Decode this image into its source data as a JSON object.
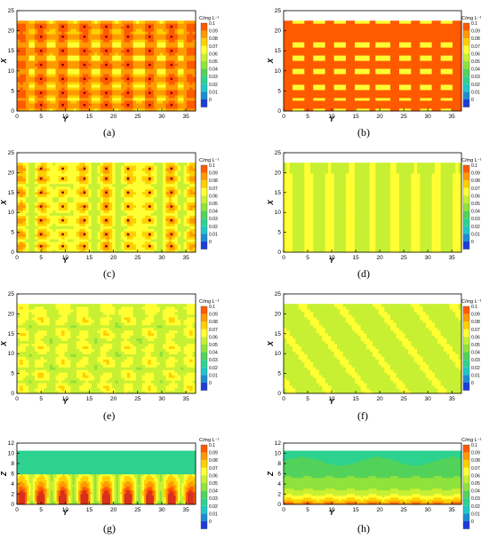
{
  "figure": {
    "panels": [
      {
        "label": "(a)",
        "pattern": "high_grid",
        "xlabel": "Y",
        "ylabel": "X"
      },
      {
        "label": "(b)",
        "pattern": "high_bands",
        "xlabel": "Y",
        "ylabel": "X"
      },
      {
        "label": "(c)",
        "pattern": "mid_spots",
        "xlabel": "Y",
        "ylabel": "X"
      },
      {
        "label": "(d)",
        "pattern": "low_bands",
        "xlabel": "Y",
        "ylabel": "X"
      },
      {
        "label": "(e)",
        "pattern": "mid_soft",
        "xlabel": "Y",
        "ylabel": "X"
      },
      {
        "label": "(f)",
        "pattern": "uniform_low",
        "xlabel": "Y",
        "ylabel": "X"
      },
      {
        "label": "(g)",
        "pattern": "vertical_hot",
        "xlabel": "Y",
        "ylabel": "Z"
      },
      {
        "label": "(h)",
        "pattern": "vertical_layers",
        "xlabel": "Y",
        "ylabel": "Z"
      }
    ]
  },
  "chart_data": {
    "type": "heatmap",
    "colorbar": {
      "title": "C/mg L⁻¹",
      "levels": [
        "0.1",
        "0.09",
        "0.08",
        "0.07",
        "0.06",
        "0.05",
        "0.04",
        "0.03",
        "0.02",
        "0.01",
        "0"
      ],
      "colors": [
        "#d7301f",
        "#ff5a00",
        "#ff9a00",
        "#ffd000",
        "#ffff33",
        "#c8f032",
        "#90e23c",
        "#52d25a",
        "#2dd28e",
        "#1ec8c8",
        "#1e8cd2",
        "#1e3cdc"
      ]
    },
    "xy_panels": {
      "x_ticks": [
        0,
        5,
        10,
        15,
        20,
        25,
        30,
        35
      ],
      "y_ticks": [
        0,
        5,
        10,
        15,
        20,
        25
      ],
      "xlim": [
        0,
        37
      ],
      "ylim": [
        0,
        25
      ],
      "domain_height": 22.5
    },
    "xz_panels": {
      "x_ticks": [
        0,
        5,
        10,
        15,
        20,
        25,
        30,
        35
      ],
      "y_ticks": [
        0,
        2,
        4,
        6,
        8,
        10,
        12
      ],
      "xlim": [
        0,
        37
      ],
      "ylim": [
        0,
        12
      ],
      "domain_height": 10.5
    },
    "emitter_y": [
      1,
      5,
      9.5,
      14,
      18.5,
      23,
      27.5,
      32,
      36
    ],
    "emitter_x": [
      1.5,
      4.5,
      8,
      11.5,
      15,
      18.5,
      21
    ]
  }
}
